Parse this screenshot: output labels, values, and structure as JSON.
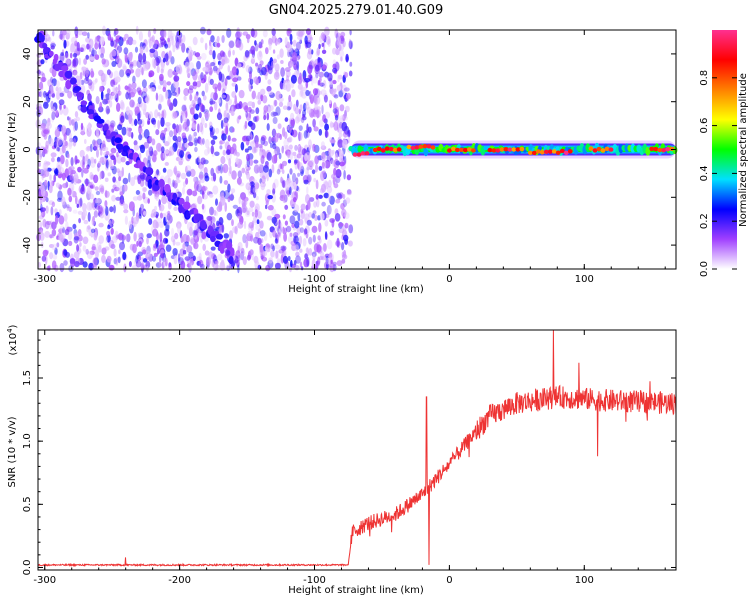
{
  "title": "GN04.2025.279.01.40.G09",
  "chart_data": [
    {
      "type": "heatmap",
      "xlabel": "Height of straight line (km)",
      "ylabel": "Frequency (Hz)",
      "xlim": [
        -305,
        168
      ],
      "ylim": [
        -50,
        50
      ],
      "xticks": [
        -300,
        -200,
        -100,
        0,
        100
      ],
      "xtick_labels": [
        "-300",
        "-200",
        "-100",
        "0",
        "100"
      ],
      "yticks": [
        -40,
        -20,
        0,
        20,
        40
      ],
      "ytick_labels": [
        "-40",
        "-20",
        "0",
        "20",
        "40"
      ],
      "colorbar": {
        "label": "Normalized spectral amplitude",
        "range": [
          0,
          1
        ],
        "ticks": [
          0.0,
          0.2,
          0.4,
          0.6,
          0.8
        ],
        "tick_labels": [
          "0.0",
          "0.2",
          "0.4",
          "0.6",
          "0.8"
        ],
        "colors": [
          "#ffffff",
          "#a040ff",
          "#0000ff",
          "#00e0ff",
          "#00ff00",
          "#ffff00",
          "#ff8000",
          "#ff0000",
          "#ff3090"
        ]
      },
      "noise_region_x": [
        -305,
        -73
      ],
      "diagonal_feature": {
        "points": [
          {
            "x": -305,
            "y": 47
          },
          {
            "x": -285,
            "y": 32
          },
          {
            "x": -265,
            "y": 15
          },
          {
            "x": -240,
            "y": 0
          },
          {
            "x": -220,
            "y": -13
          },
          {
            "x": -200,
            "y": -22
          },
          {
            "x": -180,
            "y": -33
          },
          {
            "x": -160,
            "y": -45
          }
        ]
      },
      "horizontal_feature": {
        "x_range": [
          -73,
          168
        ],
        "y": 0,
        "peak_segments": [
          {
            "x": [
              -70,
              -60
            ],
            "y": -2
          },
          {
            "x": [
              -55,
              -35
            ],
            "y": 0
          },
          {
            "x": [
              -30,
              -10
            ],
            "y": 1
          },
          {
            "x": [
              0,
              20
            ],
            "y": 0
          },
          {
            "x": [
              30,
              55
            ],
            "y": 0
          },
          {
            "x": [
              60,
              90
            ],
            "y": -1
          },
          {
            "x": [
              105,
              120
            ],
            "y": 0
          },
          {
            "x": [
              150,
              165
            ],
            "y": 0
          }
        ]
      }
    },
    {
      "type": "line",
      "xlabel": "Height of straight line (km)",
      "ylabel": "SNR (10 * v/v)",
      "y_multiplier": "(x10",
      "y_multiplier_exp": "4",
      "y_multiplier_close": ")",
      "xlim": [
        -305,
        168
      ],
      "ylim": [
        -0.02,
        1.88
      ],
      "xticks": [
        -300,
        -200,
        -100,
        0,
        100
      ],
      "xtick_labels": [
        "-300",
        "-200",
        "-100",
        "0",
        "100"
      ],
      "yticks": [
        0.0,
        0.5,
        1.0,
        1.5
      ],
      "ytick_labels": [
        "0.0",
        "0.5",
        "1.0",
        "1.5"
      ],
      "color": "#ee3333",
      "envelope": {
        "x": [
          -305,
          -75,
          -72,
          -60,
          -40,
          -20,
          0,
          20,
          30,
          50,
          80,
          120,
          168
        ],
        "y": [
          0.02,
          0.02,
          0.28,
          0.35,
          0.42,
          0.58,
          0.82,
          1.08,
          1.2,
          1.3,
          1.35,
          1.32,
          1.3
        ]
      },
      "spikes": [
        {
          "x": -240,
          "y": 0.08
        },
        {
          "x": -17,
          "y": 1.35
        },
        {
          "x": -15,
          "y": 0.02
        },
        {
          "x": 77,
          "y": 1.88
        },
        {
          "x": 96,
          "y": 1.62
        },
        {
          "x": 110,
          "y": 0.88
        }
      ]
    }
  ]
}
